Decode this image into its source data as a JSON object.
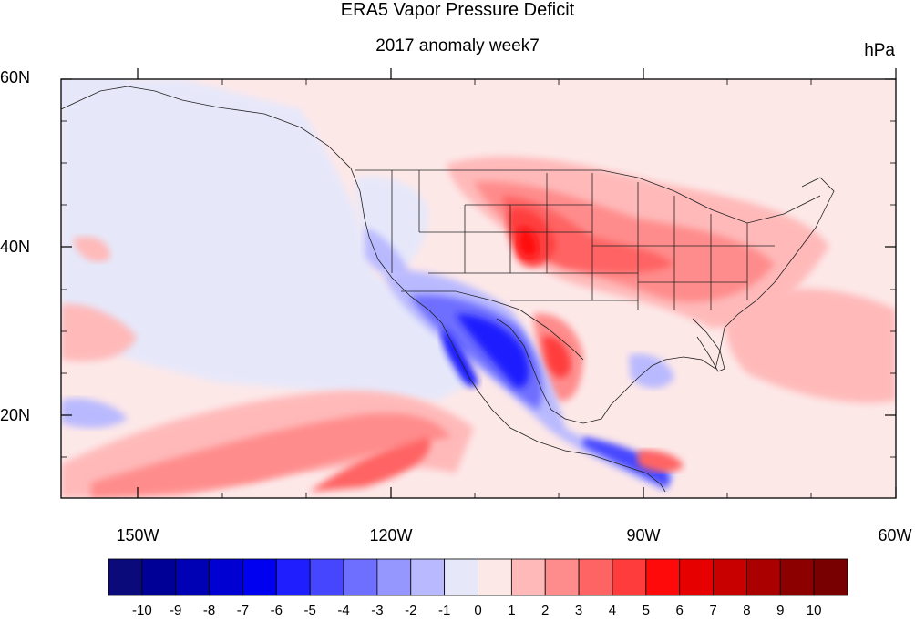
{
  "title": "ERA5 Vapor Pressure Deficit",
  "subtitle": "2017 anomaly week7",
  "units": "hPa",
  "map": {
    "region": "North America and Eastern Pacific",
    "lon_range": [
      -160,
      -60
    ],
    "lat_range": [
      10,
      60
    ],
    "lat_ticks": [
      {
        "label": "60N",
        "value": 60
      },
      {
        "label": "40N",
        "value": 40
      },
      {
        "label": "20N",
        "value": 20
      }
    ],
    "lon_ticks": [
      {
        "label": "150W",
        "value": -150
      },
      {
        "label": "120W",
        "value": -120
      },
      {
        "label": "90W",
        "value": -90
      },
      {
        "label": "60W",
        "value": -60
      }
    ],
    "background_color": "#fde8e8"
  },
  "colorbar": {
    "labels": [
      "-10",
      "-9",
      "-8",
      "-7",
      "-6",
      "-5",
      "-4",
      "-3",
      "-2",
      "-1",
      "0",
      "1",
      "2",
      "3",
      "4",
      "5",
      "6",
      "7",
      "8",
      "9",
      "10"
    ],
    "colors": [
      "#0a0a7a",
      "#000096",
      "#0000b4",
      "#0000d2",
      "#0000f0",
      "#1e1eff",
      "#4646ff",
      "#6e6eff",
      "#9696ff",
      "#b9b9ff",
      "#e6e8fa",
      "#fde8e8",
      "#ffb9b9",
      "#ff8c8c",
      "#ff6464",
      "#ff3c3c",
      "#ff0a0a",
      "#e60000",
      "#c80000",
      "#aa0000",
      "#8c0000",
      "#780000"
    ]
  }
}
